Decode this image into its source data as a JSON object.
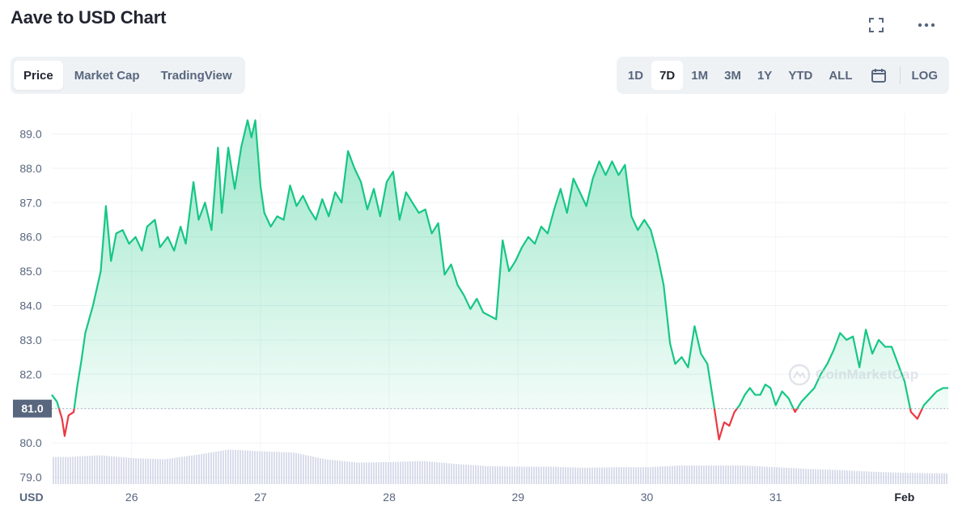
{
  "header": {
    "title": "Aave to USD Chart"
  },
  "icons": {
    "expand": "fullscreen-icon",
    "more": "more-icon",
    "calendar": "calendar-icon"
  },
  "tabs": [
    {
      "label": "Price",
      "active": true
    },
    {
      "label": "Market Cap",
      "active": false
    },
    {
      "label": "TradingView",
      "active": false
    }
  ],
  "ranges": [
    {
      "label": "1D",
      "active": false
    },
    {
      "label": "7D",
      "active": true
    },
    {
      "label": "1M",
      "active": false
    },
    {
      "label": "3M",
      "active": false
    },
    {
      "label": "1Y",
      "active": false
    },
    {
      "label": "YTD",
      "active": false
    },
    {
      "label": "ALL",
      "active": false
    }
  ],
  "scale": {
    "log_label": "LOG"
  },
  "watermark": "CoinMarketCap",
  "colors": {
    "up": "#16c784",
    "down": "#ea3943",
    "volume": "#c9cfe3",
    "accent": "#3861fb"
  },
  "chart_data": {
    "type": "area",
    "unit_label": "USD",
    "reference_value": 81.0,
    "reference_label": "81.0",
    "ylim": [
      78.8,
      89.6
    ],
    "y_ticks": [
      79.0,
      80.0,
      81.0,
      82.0,
      83.0,
      84.0,
      85.0,
      86.0,
      87.0,
      88.0,
      89.0
    ],
    "x_tick_labels": [
      "26",
      "27",
      "28",
      "29",
      "30",
      "31",
      "Feb"
    ],
    "x_tick_positions_days": [
      1,
      2,
      3,
      4,
      5,
      6,
      7
    ],
    "x_range_days": [
      0.38,
      7.34
    ],
    "series": [
      {
        "values": [
          [
            0.38,
            81.4
          ],
          [
            0.42,
            81.2
          ],
          [
            0.46,
            80.7
          ],
          [
            0.48,
            80.2
          ],
          [
            0.51,
            80.8
          ],
          [
            0.55,
            80.9
          ],
          [
            0.58,
            81.7
          ],
          [
            0.61,
            82.4
          ],
          [
            0.64,
            83.2
          ],
          [
            0.7,
            84.0
          ],
          [
            0.76,
            85.0
          ],
          [
            0.8,
            86.9
          ],
          [
            0.84,
            85.3
          ],
          [
            0.88,
            86.1
          ],
          [
            0.93,
            86.2
          ],
          [
            0.98,
            85.8
          ],
          [
            1.03,
            86.0
          ],
          [
            1.08,
            85.6
          ],
          [
            1.12,
            86.3
          ],
          [
            1.18,
            86.5
          ],
          [
            1.22,
            85.7
          ],
          [
            1.28,
            86.0
          ],
          [
            1.33,
            85.6
          ],
          [
            1.38,
            86.3
          ],
          [
            1.42,
            85.8
          ],
          [
            1.48,
            87.6
          ],
          [
            1.52,
            86.5
          ],
          [
            1.57,
            87.0
          ],
          [
            1.62,
            86.2
          ],
          [
            1.67,
            88.6
          ],
          [
            1.7,
            86.7
          ],
          [
            1.75,
            88.6
          ],
          [
            1.8,
            87.4
          ],
          [
            1.85,
            88.6
          ],
          [
            1.9,
            89.4
          ],
          [
            1.93,
            88.9
          ],
          [
            1.96,
            89.4
          ],
          [
            2.0,
            87.5
          ],
          [
            2.03,
            86.7
          ],
          [
            2.08,
            86.3
          ],
          [
            2.13,
            86.6
          ],
          [
            2.18,
            86.5
          ],
          [
            2.23,
            87.5
          ],
          [
            2.28,
            86.9
          ],
          [
            2.33,
            87.2
          ],
          [
            2.38,
            86.8
          ],
          [
            2.43,
            86.5
          ],
          [
            2.48,
            87.1
          ],
          [
            2.53,
            86.6
          ],
          [
            2.58,
            87.3
          ],
          [
            2.63,
            87.0
          ],
          [
            2.68,
            88.5
          ],
          [
            2.73,
            88.0
          ],
          [
            2.78,
            87.6
          ],
          [
            2.83,
            86.8
          ],
          [
            2.88,
            87.4
          ],
          [
            2.93,
            86.6
          ],
          [
            2.98,
            87.6
          ],
          [
            3.03,
            87.9
          ],
          [
            3.08,
            86.5
          ],
          [
            3.13,
            87.3
          ],
          [
            3.18,
            87.0
          ],
          [
            3.23,
            86.7
          ],
          [
            3.28,
            86.8
          ],
          [
            3.33,
            86.1
          ],
          [
            3.38,
            86.4
          ],
          [
            3.43,
            84.9
          ],
          [
            3.48,
            85.2
          ],
          [
            3.53,
            84.6
          ],
          [
            3.58,
            84.3
          ],
          [
            3.63,
            83.9
          ],
          [
            3.68,
            84.2
          ],
          [
            3.73,
            83.8
          ],
          [
            3.78,
            83.7
          ],
          [
            3.83,
            83.6
          ],
          [
            3.88,
            85.9
          ],
          [
            3.93,
            85.0
          ],
          [
            3.98,
            85.3
          ],
          [
            4.03,
            85.7
          ],
          [
            4.08,
            86.0
          ],
          [
            4.13,
            85.8
          ],
          [
            4.18,
            86.3
          ],
          [
            4.23,
            86.1
          ],
          [
            4.28,
            86.8
          ],
          [
            4.33,
            87.4
          ],
          [
            4.38,
            86.7
          ],
          [
            4.43,
            87.7
          ],
          [
            4.48,
            87.3
          ],
          [
            4.53,
            86.9
          ],
          [
            4.58,
            87.7
          ],
          [
            4.63,
            88.2
          ],
          [
            4.68,
            87.8
          ],
          [
            4.73,
            88.2
          ],
          [
            4.78,
            87.8
          ],
          [
            4.83,
            88.1
          ],
          [
            4.88,
            86.6
          ],
          [
            4.93,
            86.2
          ],
          [
            4.98,
            86.5
          ],
          [
            5.03,
            86.2
          ],
          [
            5.08,
            85.5
          ],
          [
            5.13,
            84.6
          ],
          [
            5.18,
            82.9
          ],
          [
            5.22,
            82.3
          ],
          [
            5.27,
            82.5
          ],
          [
            5.32,
            82.2
          ],
          [
            5.37,
            83.4
          ],
          [
            5.42,
            82.6
          ],
          [
            5.47,
            82.3
          ],
          [
            5.52,
            81.1
          ],
          [
            5.56,
            80.1
          ],
          [
            5.6,
            80.6
          ],
          [
            5.64,
            80.5
          ],
          [
            5.68,
            80.9
          ],
          [
            5.72,
            81.1
          ],
          [
            5.76,
            81.4
          ],
          [
            5.8,
            81.6
          ],
          [
            5.84,
            81.4
          ],
          [
            5.88,
            81.4
          ],
          [
            5.92,
            81.7
          ],
          [
            5.96,
            81.6
          ],
          [
            6.0,
            81.1
          ],
          [
            6.05,
            81.5
          ],
          [
            6.1,
            81.3
          ],
          [
            6.15,
            80.9
          ],
          [
            6.2,
            81.2
          ],
          [
            6.25,
            81.4
          ],
          [
            6.3,
            81.6
          ],
          [
            6.35,
            82.0
          ],
          [
            6.4,
            82.3
          ],
          [
            6.45,
            82.7
          ],
          [
            6.5,
            83.2
          ],
          [
            6.55,
            83.0
          ],
          [
            6.6,
            83.1
          ],
          [
            6.65,
            82.2
          ],
          [
            6.7,
            83.3
          ],
          [
            6.75,
            82.6
          ],
          [
            6.8,
            83.0
          ],
          [
            6.85,
            82.8
          ],
          [
            6.9,
            82.8
          ],
          [
            6.95,
            82.3
          ],
          [
            7.0,
            81.8
          ],
          [
            7.05,
            80.9
          ],
          [
            7.1,
            80.7
          ],
          [
            7.15,
            81.1
          ],
          [
            7.2,
            81.3
          ],
          [
            7.25,
            81.5
          ],
          [
            7.3,
            81.6
          ],
          [
            7.34,
            81.6
          ]
        ]
      },
      {
        "name": "",
        "kind": "volume",
        "values": [
          [
            0.5,
            0.42
          ],
          [
            0.75,
            0.45
          ],
          [
            1.0,
            0.4
          ],
          [
            1.25,
            0.38
          ],
          [
            1.5,
            0.46
          ],
          [
            1.75,
            0.55
          ],
          [
            2.0,
            0.52
          ],
          [
            2.25,
            0.5
          ],
          [
            2.5,
            0.38
          ],
          [
            2.75,
            0.32
          ],
          [
            3.0,
            0.33
          ],
          [
            3.25,
            0.35
          ],
          [
            3.5,
            0.3
          ],
          [
            3.75,
            0.26
          ],
          [
            4.0,
            0.25
          ],
          [
            4.25,
            0.25
          ],
          [
            4.5,
            0.23
          ],
          [
            4.75,
            0.24
          ],
          [
            5.0,
            0.24
          ],
          [
            5.25,
            0.27
          ],
          [
            5.5,
            0.27
          ],
          [
            5.75,
            0.27
          ],
          [
            6.0,
            0.24
          ],
          [
            6.25,
            0.21
          ],
          [
            6.5,
            0.19
          ],
          [
            6.75,
            0.16
          ],
          [
            7.0,
            0.14
          ],
          [
            7.34,
            0.13
          ]
        ]
      }
    ]
  }
}
